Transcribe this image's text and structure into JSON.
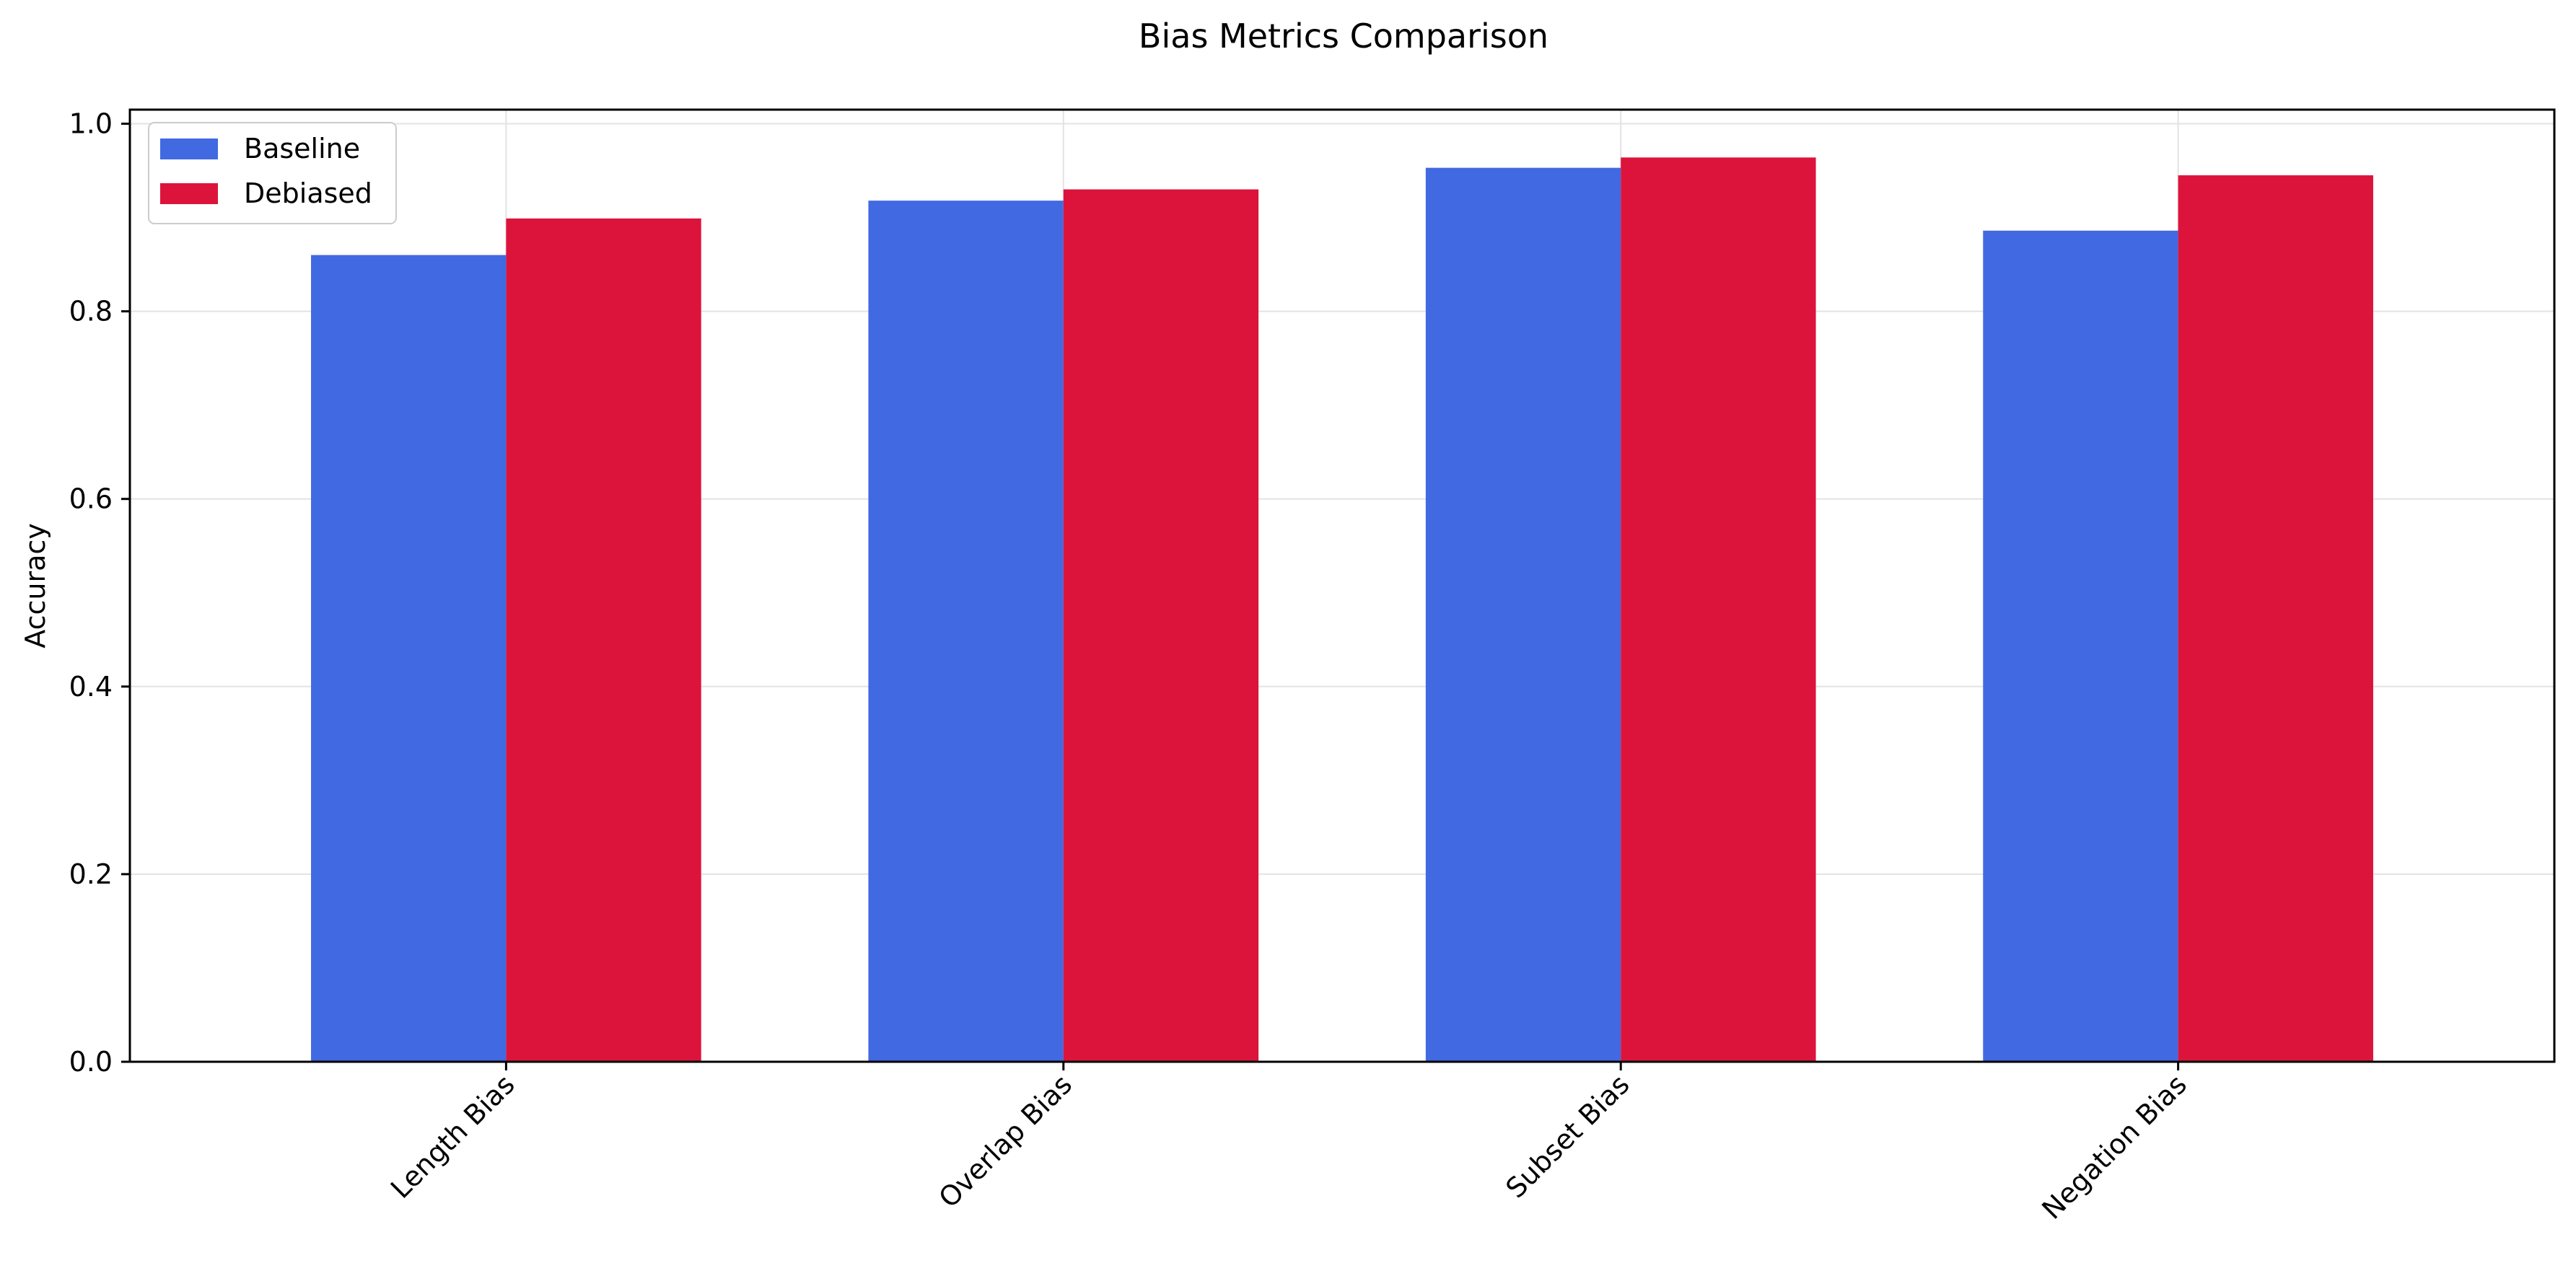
{
  "chart_data": {
    "type": "bar",
    "title": "Bias Metrics Comparison",
    "xlabel": "",
    "ylabel": "Accuracy",
    "categories": [
      "Length Bias",
      "Overlap Bias",
      "Subset Bias",
      "Negation Bias"
    ],
    "series": [
      {
        "name": "Baseline",
        "color": "#4169e1",
        "values": [
          0.86,
          0.918,
          0.953,
          0.886
        ]
      },
      {
        "name": "Debiased",
        "color": "#dc143c",
        "values": [
          0.899,
          0.93,
          0.964,
          0.945
        ]
      }
    ],
    "ylim": [
      0,
      1.0
    ],
    "yticks": [
      "0.0",
      "0.2",
      "0.4",
      "0.6",
      "0.8",
      "1.0"
    ],
    "grid": true,
    "legend": "top-left",
    "x_tick_rotation_deg": 45
  }
}
